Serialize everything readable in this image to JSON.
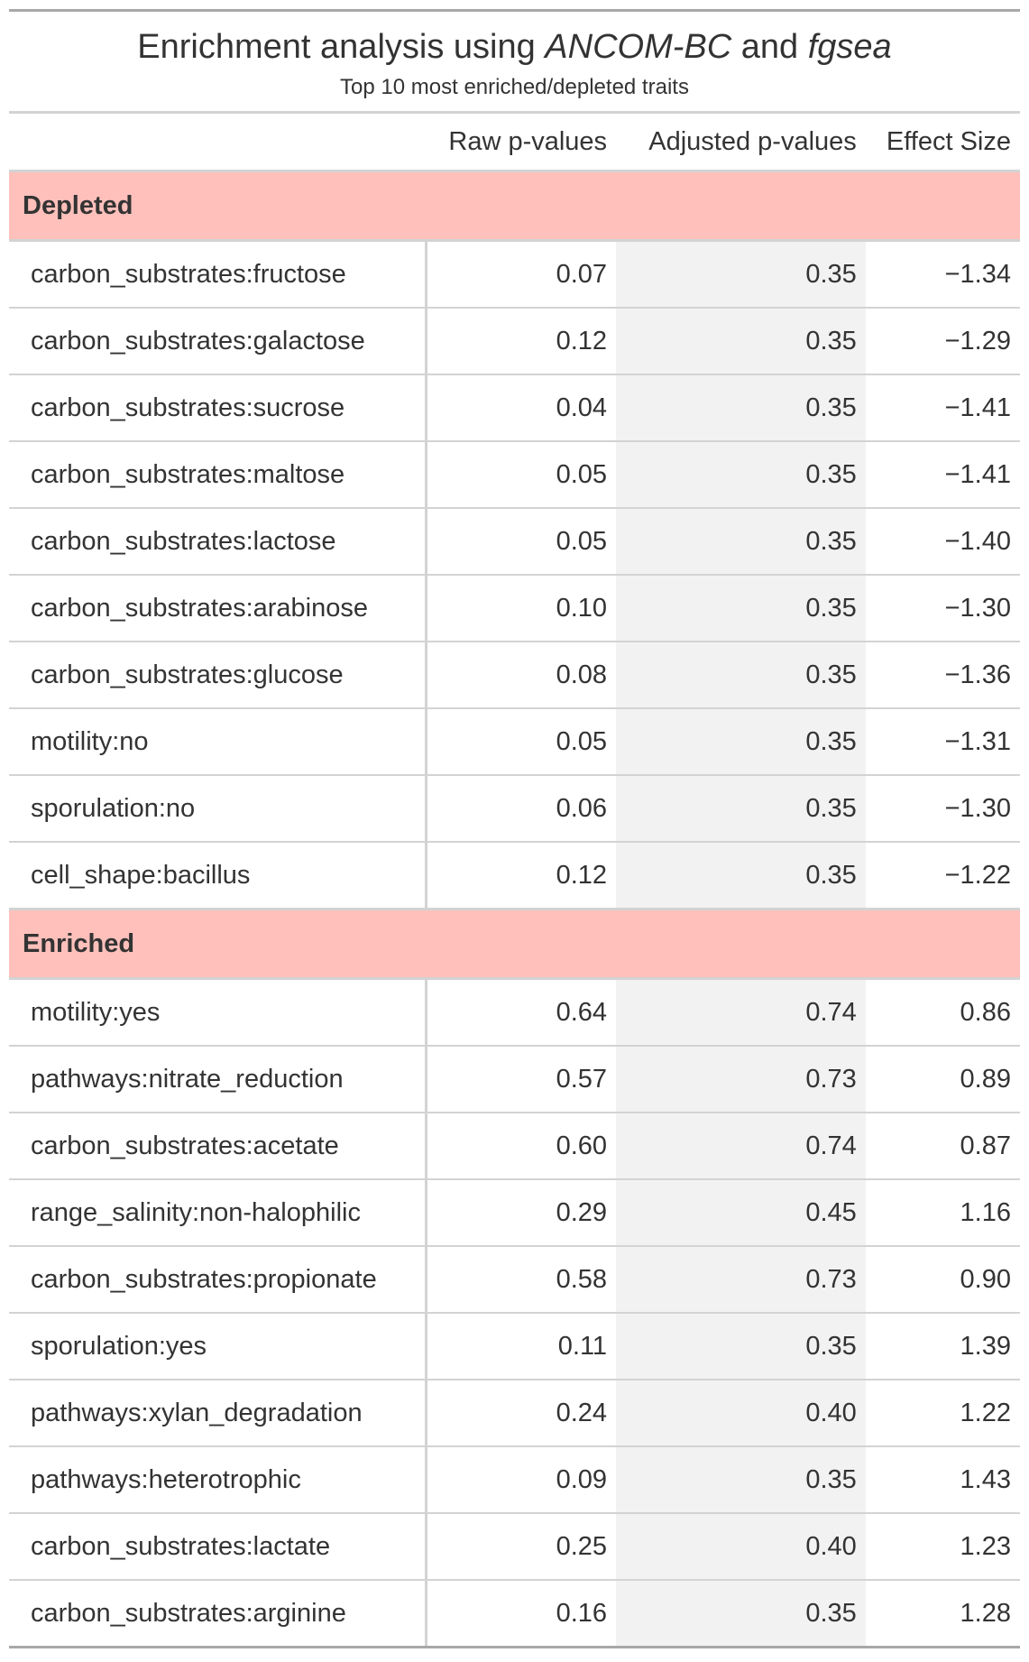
{
  "chart_data": {
    "type": "table",
    "title_prefix": "Enrichment analysis using ",
    "title_method1": "ANCOM-BC",
    "title_and": " and ",
    "title_method2": "fgsea",
    "subtitle": "Top 10 most enriched/depleted traits",
    "columns": [
      "",
      "Raw p-values",
      "Adjusted p-values",
      "Effect Size"
    ],
    "groups": [
      {
        "name": "Depleted",
        "rows": [
          {
            "trait": "carbon_substrates:fructose",
            "raw": "0.07",
            "adj": "0.35",
            "effect": "−1.34"
          },
          {
            "trait": "carbon_substrates:galactose",
            "raw": "0.12",
            "adj": "0.35",
            "effect": "−1.29"
          },
          {
            "trait": "carbon_substrates:sucrose",
            "raw": "0.04",
            "adj": "0.35",
            "effect": "−1.41"
          },
          {
            "trait": "carbon_substrates:maltose",
            "raw": "0.05",
            "adj": "0.35",
            "effect": "−1.41"
          },
          {
            "trait": "carbon_substrates:lactose",
            "raw": "0.05",
            "adj": "0.35",
            "effect": "−1.40"
          },
          {
            "trait": "carbon_substrates:arabinose",
            "raw": "0.10",
            "adj": "0.35",
            "effect": "−1.30"
          },
          {
            "trait": "carbon_substrates:glucose",
            "raw": "0.08",
            "adj": "0.35",
            "effect": "−1.36"
          },
          {
            "trait": "motility:no",
            "raw": "0.05",
            "adj": "0.35",
            "effect": "−1.31"
          },
          {
            "trait": "sporulation:no",
            "raw": "0.06",
            "adj": "0.35",
            "effect": "−1.30"
          },
          {
            "trait": "cell_shape:bacillus",
            "raw": "0.12",
            "adj": "0.35",
            "effect": "−1.22"
          }
        ]
      },
      {
        "name": "Enriched",
        "rows": [
          {
            "trait": "motility:yes",
            "raw": "0.64",
            "adj": "0.74",
            "effect": "0.86"
          },
          {
            "trait": "pathways:nitrate_reduction",
            "raw": "0.57",
            "adj": "0.73",
            "effect": "0.89"
          },
          {
            "trait": "carbon_substrates:acetate",
            "raw": "0.60",
            "adj": "0.74",
            "effect": "0.87"
          },
          {
            "trait": "range_salinity:non-halophilic",
            "raw": "0.29",
            "adj": "0.45",
            "effect": "1.16"
          },
          {
            "trait": "carbon_substrates:propionate",
            "raw": "0.58",
            "adj": "0.73",
            "effect": "0.90"
          },
          {
            "trait": "sporulation:yes",
            "raw": "0.11",
            "adj": "0.35",
            "effect": "1.39"
          },
          {
            "trait": "pathways:xylan_degradation",
            "raw": "0.24",
            "adj": "0.40",
            "effect": "1.22"
          },
          {
            "trait": "pathways:heterotrophic",
            "raw": "0.09",
            "adj": "0.35",
            "effect": "1.43"
          },
          {
            "trait": "carbon_substrates:lactate",
            "raw": "0.25",
            "adj": "0.40",
            "effect": "1.23"
          },
          {
            "trait": "carbon_substrates:arginine",
            "raw": "0.16",
            "adj": "0.35",
            "effect": "1.28"
          }
        ]
      }
    ]
  },
  "colors": {
    "group_header_bg": "#ffc0bb",
    "adjusted_column_bg": "#f2f2f2",
    "rule_color": "#d3d3d3",
    "outer_rule_color": "#a8a8a8",
    "text_color": "#333333"
  }
}
